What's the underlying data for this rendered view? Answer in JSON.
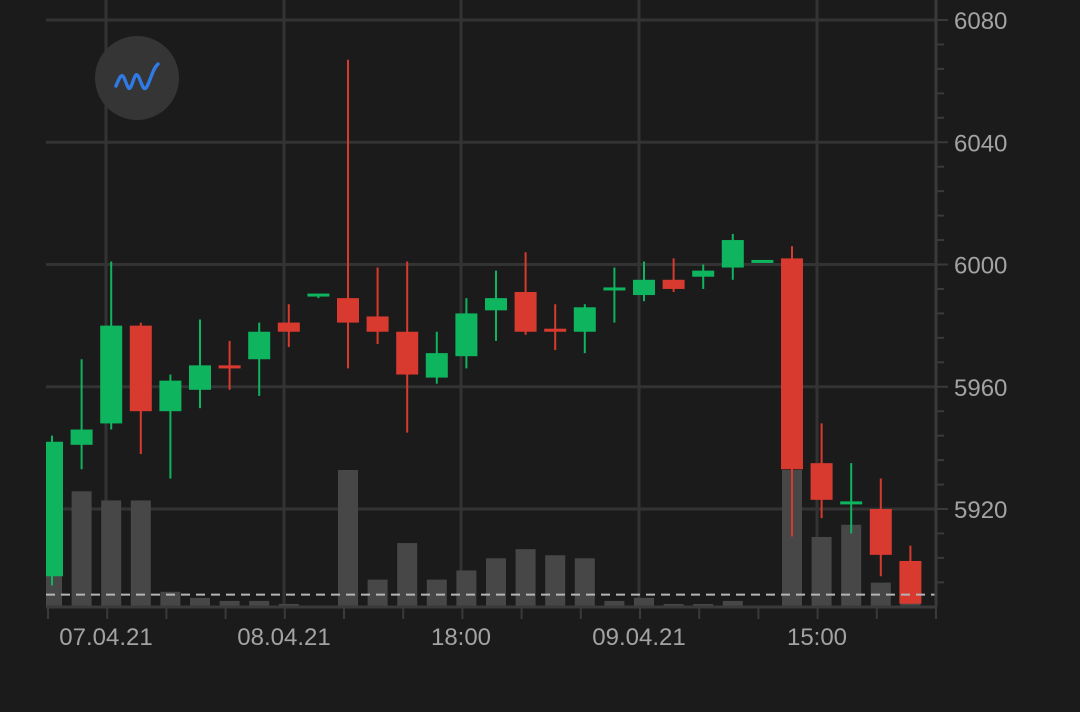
{
  "toolbar": {
    "indicator_icon": "indicator-wave-icon"
  },
  "colors": {
    "background": "#1b1b1b",
    "grid": "#333333",
    "up": "#0fb55e",
    "down": "#d93a2f",
    "volume": "#474747",
    "axis_text": "#a3a3a3",
    "current_price_line": "#b5b5b5",
    "indicator_icon": "#2f7ae5",
    "indicator_button": "#353535"
  },
  "chart_data": {
    "type": "candlestick",
    "title": "",
    "xlabel": "",
    "ylabel": "",
    "ylim": [
      5889,
      6080
    ],
    "y_ticks": [
      6080,
      6040,
      6000,
      5960,
      5920
    ],
    "x_ticks": [
      "07.04.21",
      "08.04.21",
      "18:00",
      "09.04.21",
      "15:00"
    ],
    "grid": true,
    "y_axis_position": "right",
    "current_price_line": 5892,
    "candles": [
      {
        "o": 5898,
        "h": 5944,
        "l": 5895,
        "c": 5942
      },
      {
        "o": 5941,
        "h": 5969,
        "l": 5933,
        "c": 5946
      },
      {
        "o": 5948,
        "h": 6001,
        "l": 5946,
        "c": 5980
      },
      {
        "o": 5980,
        "h": 5981,
        "l": 5938,
        "c": 5952
      },
      {
        "o": 5952,
        "h": 5964,
        "l": 5930,
        "c": 5962
      },
      {
        "o": 5959,
        "h": 5982,
        "l": 5953,
        "c": 5967
      },
      {
        "o": 5967,
        "h": 5975,
        "l": 5959,
        "c": 5966
      },
      {
        "o": 5969,
        "h": 5981,
        "l": 5957,
        "c": 5978
      },
      {
        "o": 5981,
        "h": 5987,
        "l": 5973,
        "c": 5978
      },
      {
        "o": 5990,
        "h": 5990,
        "l": 5989,
        "c": 5990
      },
      {
        "o": 5989,
        "h": 6067,
        "l": 5966,
        "c": 5981
      },
      {
        "o": 5983,
        "h": 5999,
        "l": 5974,
        "c": 5978
      },
      {
        "o": 5978,
        "h": 6001,
        "l": 5945,
        "c": 5964
      },
      {
        "o": 5963,
        "h": 5978,
        "l": 5961,
        "c": 5971
      },
      {
        "o": 5970,
        "h": 5989,
        "l": 5966,
        "c": 5984
      },
      {
        "o": 5985,
        "h": 5998,
        "l": 5975,
        "c": 5989
      },
      {
        "o": 5991,
        "h": 6004,
        "l": 5977,
        "c": 5978
      },
      {
        "o": 5979,
        "h": 5987,
        "l": 5972,
        "c": 5978
      },
      {
        "o": 5978,
        "h": 5987,
        "l": 5971,
        "c": 5986
      },
      {
        "o": 5992,
        "h": 5999,
        "l": 5981,
        "c": 5992
      },
      {
        "o": 5990,
        "h": 6001,
        "l": 5988,
        "c": 5995
      },
      {
        "o": 5995,
        "h": 6002,
        "l": 5991,
        "c": 5992
      },
      {
        "o": 5996,
        "h": 6000,
        "l": 5992,
        "c": 5998
      },
      {
        "o": 5999,
        "h": 6010,
        "l": 5995,
        "c": 6008
      },
      {
        "o": 6001,
        "h": 6001,
        "l": 6001,
        "c": 6001
      },
      {
        "o": 6002,
        "h": 6006,
        "l": 5911,
        "c": 5933
      },
      {
        "o": 5935,
        "h": 5948,
        "l": 5917,
        "c": 5923
      },
      {
        "o": 5922,
        "h": 5935,
        "l": 5912,
        "c": 5922
      },
      {
        "o": 5920,
        "h": 5930,
        "l": 5898,
        "c": 5905
      },
      {
        "o": 5903,
        "h": 5908,
        "l": 5889,
        "c": 5889
      }
    ],
    "volume": [
      40,
      38,
      35,
      35,
      5,
      3,
      2,
      2,
      1,
      0,
      45,
      9,
      21,
      9,
      12,
      16,
      19,
      17,
      16,
      2,
      3,
      1,
      0.5,
      2,
      0,
      45,
      23,
      27,
      8,
      5
    ]
  }
}
